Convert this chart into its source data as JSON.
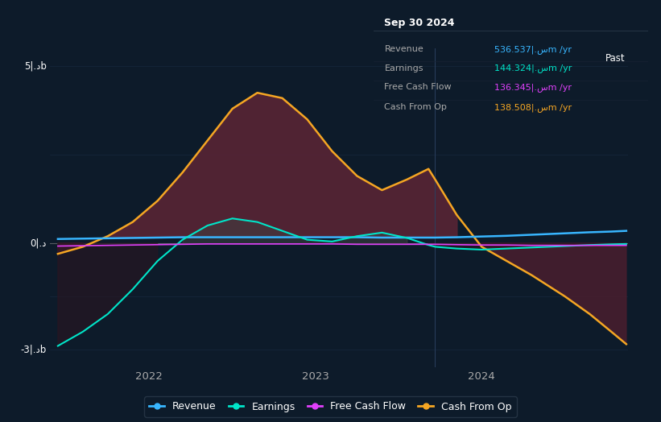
{
  "bg_color": "#0d1b2a",
  "plot_bg_color": "#0d1b2a",
  "ylim": [
    -3.5,
    5.5
  ],
  "xlim": [
    2021.4,
    2024.88
  ],
  "divider_x": 2023.72,
  "past_label": "Past",
  "y_label_5b": "5|.دb",
  "y_label_0": "0|.د",
  "y_label_n3b": "-3|.دb",
  "y_val_5b": 5.0,
  "y_val_0": 0.0,
  "y_val_n3b": -3.0,
  "x_ticks": [
    2022.0,
    2023.0,
    2024.0
  ],
  "x_tick_labels": [
    "2022",
    "2023",
    "2024"
  ],
  "info_title": "Sep 30 2024",
  "info_rows": [
    {
      "label": "Revenue",
      "value": "536.537|.سm /yr",
      "color": "#38b6ff"
    },
    {
      "label": "Earnings",
      "value": "144.324|.سm /yr",
      "color": "#00e5c9"
    },
    {
      "label": "Free Cash Flow",
      "value": "136.345|.سm /yr",
      "color": "#e040fb"
    },
    {
      "label": "Cash From Op",
      "value": "138.508|.سm /yr",
      "color": "#f5a623"
    }
  ],
  "legend_items": [
    {
      "label": "Revenue",
      "color": "#38b6ff"
    },
    {
      "label": "Earnings",
      "color": "#00e5c9"
    },
    {
      "label": "Free Cash Flow",
      "color": "#e040fb"
    },
    {
      "label": "Cash From Op",
      "color": "#f5a623"
    }
  ],
  "revenue_color": "#38b6ff",
  "earnings_color": "#00e5c9",
  "fcf_color": "#e040fb",
  "cop_color": "#f5a623",
  "grid_color": "#1a2d45",
  "divider_color": "#2a4060",
  "x": [
    2021.45,
    2021.6,
    2021.75,
    2021.9,
    2022.05,
    2022.2,
    2022.35,
    2022.5,
    2022.65,
    2022.8,
    2022.95,
    2023.1,
    2023.25,
    2023.4,
    2023.55,
    2023.68,
    2023.72,
    2023.85,
    2024.0,
    2024.15,
    2024.3,
    2024.5,
    2024.65,
    2024.78,
    2024.87
  ],
  "revenue": [
    0.12,
    0.13,
    0.14,
    0.15,
    0.16,
    0.17,
    0.17,
    0.17,
    0.17,
    0.17,
    0.17,
    0.17,
    0.17,
    0.16,
    0.16,
    0.16,
    0.16,
    0.17,
    0.19,
    0.21,
    0.24,
    0.28,
    0.31,
    0.33,
    0.35
  ],
  "earnings": [
    -2.9,
    -2.5,
    -2.0,
    -1.3,
    -0.5,
    0.1,
    0.5,
    0.7,
    0.6,
    0.35,
    0.1,
    0.05,
    0.2,
    0.3,
    0.15,
    -0.05,
    -0.1,
    -0.15,
    -0.18,
    -0.15,
    -0.12,
    -0.08,
    -0.05,
    -0.03,
    -0.02
  ],
  "fcf": [
    -0.08,
    -0.07,
    -0.06,
    -0.05,
    -0.04,
    -0.03,
    -0.02,
    -0.02,
    -0.02,
    -0.02,
    -0.02,
    -0.02,
    -0.03,
    -0.03,
    -0.03,
    -0.03,
    -0.03,
    -0.04,
    -0.05,
    -0.05,
    -0.06,
    -0.06,
    -0.06,
    -0.06,
    -0.06
  ],
  "cop": [
    -0.3,
    -0.1,
    0.2,
    0.6,
    1.2,
    2.0,
    2.9,
    3.8,
    4.25,
    4.1,
    3.5,
    2.6,
    1.9,
    1.5,
    1.8,
    2.1,
    1.8,
    0.8,
    -0.1,
    -0.5,
    -0.9,
    -1.5,
    -2.0,
    -2.5,
    -2.85
  ],
  "fill_main_color": "#5c2535",
  "fill_earn_color": "#2a3d30",
  "fill_cop_neg_color": "#4a1e2e"
}
